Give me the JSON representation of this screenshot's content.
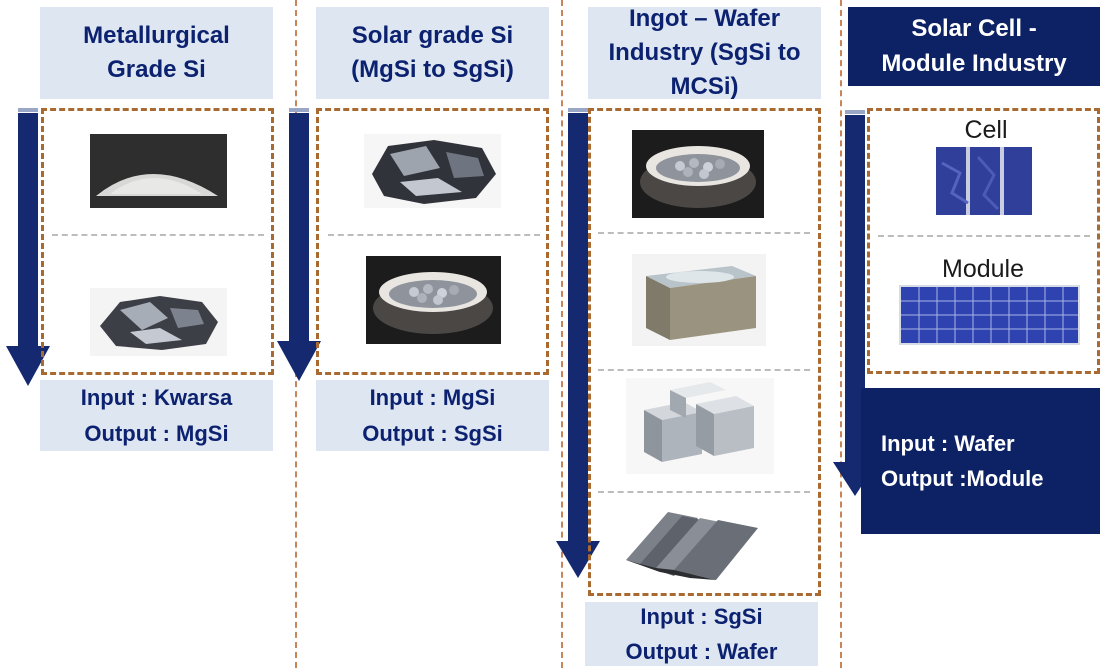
{
  "columns": [
    {
      "title_lines": [
        "Metallurgical",
        "Grade Si"
      ],
      "io_lines": [
        "Input : Kwarsa",
        "Output : MgSi"
      ]
    },
    {
      "title_lines": [
        "Solar grade Si",
        "(MgSi to SgSi)"
      ],
      "io_lines": [
        "Input : MgSi",
        "Output : SgSi"
      ]
    },
    {
      "title_lines": [
        "Ingot – Wafer",
        "Industry (SgSi to",
        "MCSi)"
      ],
      "io_lines": [
        "Input : SgSi",
        "Output : Wafer"
      ]
    },
    {
      "title_lines": [
        "Solar Cell -",
        "Module Industry"
      ],
      "io_lines": [
        "Input : Wafer",
        "Output :Module"
      ],
      "item_labels": [
        "Cell",
        "Module"
      ]
    }
  ],
  "colors": {
    "header_bg": "#dee7f1",
    "header_text": "#0c2270",
    "navy": "#0d2264",
    "arrow": "#14296f",
    "panel_border": "#a86a30",
    "column_separator": "#c9855a"
  },
  "icons": {
    "arrow": "down-arrow-icon",
    "images": [
      "silica-sand-image",
      "metallurgical-silicon-chunk-image",
      "silicon-chunk-image",
      "polysilicon-crucible-image",
      "crucible-image",
      "ingot-block-image",
      "cut-ingot-blocks-image",
      "wafer-stack-image",
      "solar-cell-image",
      "solar-module-image"
    ]
  }
}
